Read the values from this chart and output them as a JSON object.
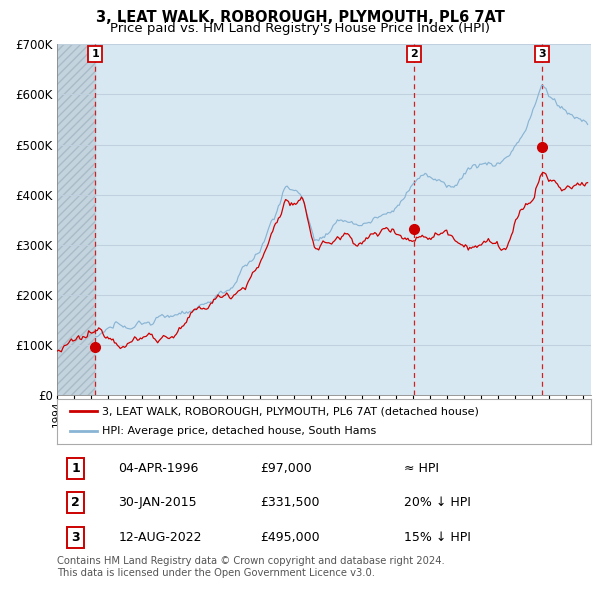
{
  "title": "3, LEAT WALK, ROBOROUGH, PLYMOUTH, PL6 7AT",
  "subtitle": "Price paid vs. HM Land Registry's House Price Index (HPI)",
  "title_fontsize": 10.5,
  "subtitle_fontsize": 9.5,
  "ylabel_ticks": [
    "£0",
    "£100K",
    "£200K",
    "£300K",
    "£400K",
    "£500K",
    "£600K",
    "£700K"
  ],
  "ytick_values": [
    0,
    100000,
    200000,
    300000,
    400000,
    500000,
    600000,
    700000
  ],
  "ylim": [
    0,
    700000
  ],
  "xlim_start": 1994.0,
  "xlim_end": 2025.5,
  "sale_dates": [
    1996.26,
    2015.08,
    2022.62
  ],
  "sale_prices": [
    97000,
    331500,
    495000
  ],
  "sale_labels": [
    "1",
    "2",
    "3"
  ],
  "hpi_line_color": "#89b4d4",
  "sale_line_color": "#cc0000",
  "sale_dot_color": "#cc0000",
  "vline_color": "#cc2222",
  "grid_color": "#c0d0df",
  "bg_color": "#d8e8f2",
  "legend_house": "3, LEAT WALK, ROBOROUGH, PLYMOUTH, PL6 7AT (detached house)",
  "legend_hpi": "HPI: Average price, detached house, South Hams",
  "table_rows": [
    [
      "1",
      "04-APR-1996",
      "£97,000",
      "≈ HPI"
    ],
    [
      "2",
      "30-JAN-2015",
      "£331,500",
      "20% ↓ HPI"
    ],
    [
      "3",
      "12-AUG-2022",
      "£495,000",
      "15% ↓ HPI"
    ]
  ],
  "footnote": "Contains HM Land Registry data © Crown copyright and database right 2024.\nThis data is licensed under the Open Government Licence v3.0.",
  "footnote_fontsize": 7.2
}
